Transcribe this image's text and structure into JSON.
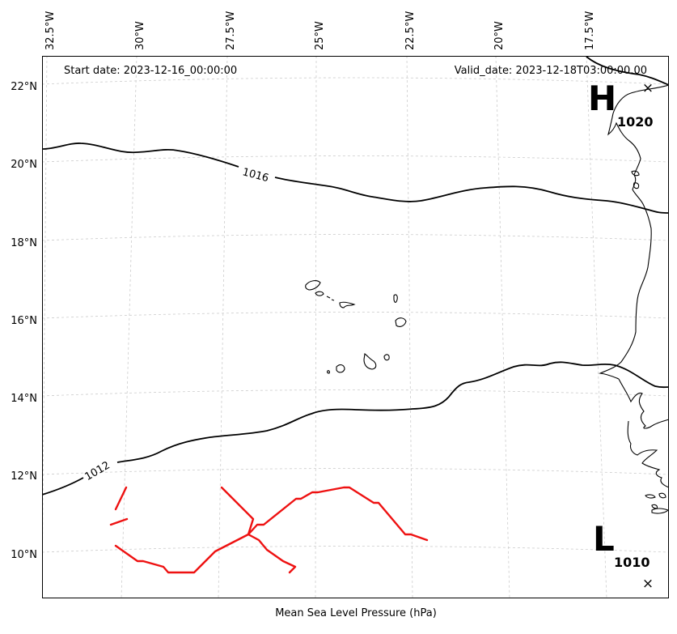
{
  "header": {
    "start_date": "Start date: 2023-12-16_00:00:00",
    "valid_date": "Valid_date: 2023-12-18T03:00:00.00"
  },
  "footer": {
    "caption": "Mean Sea Level Pressure (hPa)"
  },
  "axes": {
    "lon_ticks": [
      "32.5°W",
      "30°W",
      "27.5°W",
      "25°W",
      "22.5°W",
      "20°W",
      "17.5°W"
    ],
    "lat_ticks": [
      "22°N",
      "20°N",
      "18°N",
      "16°N",
      "14°N",
      "12°N",
      "10°N"
    ]
  },
  "contours": {
    "label_1016": "1016",
    "label_1012": "1012"
  },
  "pressure_centers": {
    "high": {
      "letter": "H",
      "value": "1020",
      "marker": "×"
    },
    "low": {
      "letter": "L",
      "value": "1010",
      "marker": "×"
    }
  },
  "colors": {
    "contour": "#000000",
    "coastline": "#000000",
    "gridline": "#cccccc",
    "front": "#ee1111"
  }
}
